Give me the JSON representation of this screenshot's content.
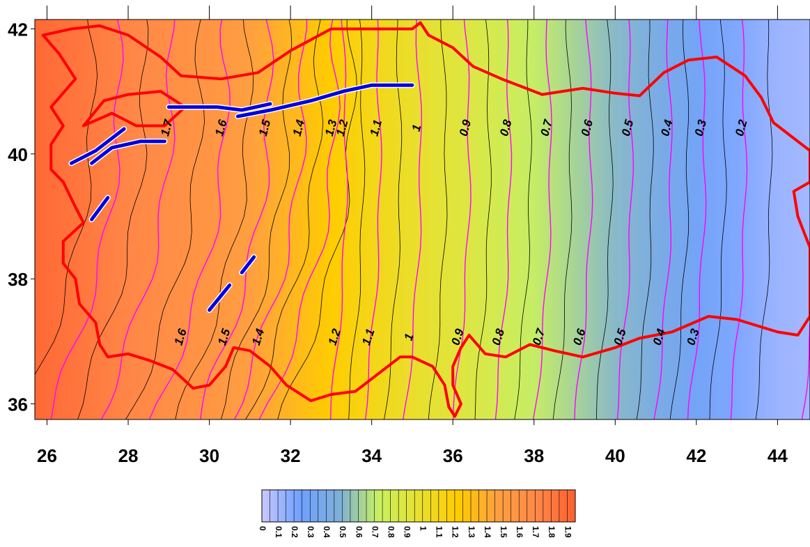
{
  "chart_data": {
    "type": "heatmap",
    "title": "",
    "xlabel": "",
    "ylabel": "",
    "xlim": [
      25.7,
      44.8
    ],
    "ylim": [
      35.75,
      42.15
    ],
    "x_ticks": [
      "26",
      "28",
      "30",
      "32",
      "34",
      "36",
      "38",
      "40",
      "42",
      "44"
    ],
    "y_ticks": [
      "36",
      "38",
      "40",
      "42"
    ],
    "colorbar": {
      "min": 0,
      "max": 1.95,
      "step": 0.05,
      "tick_labels": [
        "0",
        "0.1",
        "0.2",
        "0.3",
        "0.4",
        "0.5",
        "0.6",
        "0.7",
        "0.8",
        "0.9",
        "1",
        "1.1",
        "1.2",
        "1.3",
        "1.4",
        "1.5",
        "1.6",
        "1.7",
        "1.8",
        "1.9"
      ],
      "colors": [
        "#c8c8ff",
        "#6fa0ff",
        "#7fb0d8",
        "#c8f060",
        "#e8e030",
        "#ffcc00",
        "#ffa040",
        "#ff8848",
        "#ff6030"
      ]
    },
    "field_profile": {
      "longitudes": [
        25.7,
        27,
        28,
        29,
        30,
        31,
        32,
        33,
        34,
        35,
        36,
        37,
        38,
        39,
        40,
        41,
        42,
        43,
        44,
        44.8
      ],
      "values": [
        1.9,
        1.8,
        1.72,
        1.65,
        1.57,
        1.47,
        1.34,
        1.22,
        1.1,
        1.0,
        0.92,
        0.82,
        0.72,
        0.62,
        0.52,
        0.42,
        0.3,
        0.2,
        0.12,
        0.1
      ]
    },
    "contour_labels_north": [
      "1.7",
      "1.6",
      "1.5",
      "1.4",
      "1.3",
      "1.2",
      "1.1",
      "1",
      "0.9",
      "0.8",
      "0.7",
      "0.6",
      "0.5",
      "0.4",
      "0.3",
      "0.2"
    ],
    "contour_labels_south": [
      "1.6",
      "1.5",
      "1.4",
      "1.2",
      "1.1",
      "1",
      "0.9",
      "0.8",
      "0.7",
      "0.6",
      "0.5",
      "0.4",
      "0.3"
    ],
    "contour_line_colors": {
      "major": "#ff00ff",
      "minor": "#000000"
    },
    "border_color": "#ff0000",
    "fault_color": "#0000dd",
    "border_outline": [
      [
        25.9,
        41.9
      ],
      [
        26.6,
        42.0
      ],
      [
        27.3,
        42.05
      ],
      [
        28.0,
        41.9
      ],
      [
        28.8,
        41.55
      ],
      [
        29.3,
        41.25
      ],
      [
        30.3,
        41.2
      ],
      [
        31.2,
        41.3
      ],
      [
        32.0,
        41.65
      ],
      [
        33.0,
        42.0
      ],
      [
        34.0,
        42.0
      ],
      [
        35.0,
        42.0
      ],
      [
        35.2,
        42.1
      ],
      [
        35.4,
        41.9
      ],
      [
        36.0,
        41.7
      ],
      [
        36.5,
        41.4
      ],
      [
        37.2,
        41.2
      ],
      [
        38.2,
        40.95
      ],
      [
        39.2,
        41.05
      ],
      [
        40.0,
        40.97
      ],
      [
        40.6,
        40.93
      ],
      [
        41.2,
        41.3
      ],
      [
        41.8,
        41.5
      ],
      [
        42.5,
        41.55
      ],
      [
        43.2,
        41.25
      ],
      [
        43.6,
        40.9
      ],
      [
        43.9,
        40.5
      ],
      [
        44.8,
        40.05
      ],
      [
        44.8,
        39.55
      ],
      [
        44.4,
        39.4
      ],
      [
        44.5,
        39.0
      ],
      [
        44.8,
        38.5
      ],
      [
        44.8,
        37.4
      ],
      [
        44.5,
        37.1
      ],
      [
        44.0,
        37.15
      ],
      [
        43.0,
        37.35
      ],
      [
        42.3,
        37.4
      ],
      [
        41.4,
        37.15
      ],
      [
        40.6,
        37.05
      ],
      [
        40.0,
        36.9
      ],
      [
        39.2,
        36.75
      ],
      [
        38.5,
        36.85
      ],
      [
        37.9,
        36.95
      ],
      [
        37.3,
        36.75
      ],
      [
        36.8,
        36.8
      ],
      [
        36.6,
        36.95
      ],
      [
        36.4,
        37.1
      ],
      [
        36.2,
        36.9
      ],
      [
        36.0,
        36.6
      ],
      [
        36.0,
        36.3
      ],
      [
        36.2,
        36.0
      ],
      [
        36.05,
        35.8
      ],
      [
        35.9,
        35.95
      ],
      [
        35.8,
        36.3
      ],
      [
        35.5,
        36.6
      ],
      [
        35.0,
        36.75
      ],
      [
        34.7,
        36.75
      ],
      [
        34.2,
        36.5
      ],
      [
        33.6,
        36.2
      ],
      [
        33.0,
        36.15
      ],
      [
        32.5,
        36.05
      ],
      [
        31.9,
        36.3
      ],
      [
        31.5,
        36.6
      ],
      [
        31.0,
        36.85
      ],
      [
        30.6,
        36.9
      ],
      [
        30.4,
        36.6
      ],
      [
        30.0,
        36.3
      ],
      [
        29.6,
        36.25
      ],
      [
        29.1,
        36.55
      ],
      [
        28.5,
        36.7
      ],
      [
        28.0,
        36.8
      ],
      [
        27.5,
        36.75
      ],
      [
        27.3,
        36.95
      ],
      [
        27.2,
        37.3
      ],
      [
        26.8,
        37.6
      ],
      [
        26.7,
        38.0
      ],
      [
        26.4,
        38.25
      ],
      [
        26.4,
        38.6
      ],
      [
        26.9,
        38.9
      ],
      [
        26.7,
        39.15
      ],
      [
        26.4,
        39.55
      ],
      [
        26.1,
        39.75
      ],
      [
        26.1,
        40.15
      ],
      [
        26.4,
        40.45
      ],
      [
        26.1,
        40.75
      ],
      [
        26.7,
        41.2
      ],
      [
        26.3,
        41.6
      ],
      [
        25.9,
        41.9
      ]
    ],
    "marmara_outline": [
      [
        26.9,
        40.45
      ],
      [
        27.6,
        40.65
      ],
      [
        28.2,
        40.45
      ],
      [
        28.9,
        40.45
      ],
      [
        29.4,
        40.75
      ],
      [
        28.8,
        41.0
      ],
      [
        28.0,
        40.95
      ],
      [
        27.4,
        40.85
      ],
      [
        26.9,
        40.45
      ]
    ],
    "fault_traces": [
      [
        [
          26.6,
          39.85
        ],
        [
          27.2,
          40.05
        ],
        [
          27.9,
          40.4
        ]
      ],
      [
        [
          27.1,
          39.85
        ],
        [
          27.6,
          40.1
        ],
        [
          28.3,
          40.2
        ],
        [
          28.9,
          40.2
        ]
      ],
      [
        [
          29.0,
          40.75
        ],
        [
          30.2,
          40.75
        ],
        [
          30.8,
          40.7
        ],
        [
          31.5,
          40.8
        ]
      ],
      [
        [
          30.7,
          40.6
        ],
        [
          31.5,
          40.7
        ],
        [
          32.5,
          40.85
        ],
        [
          33.3,
          41.0
        ],
        [
          34.0,
          41.1
        ],
        [
          35.0,
          41.1
        ]
      ],
      [
        [
          27.1,
          38.95
        ],
        [
          27.5,
          39.3
        ]
      ],
      [
        [
          30.0,
          37.5
        ],
        [
          30.5,
          37.9
        ]
      ],
      [
        [
          30.8,
          38.1
        ],
        [
          31.1,
          38.35
        ]
      ]
    ]
  }
}
